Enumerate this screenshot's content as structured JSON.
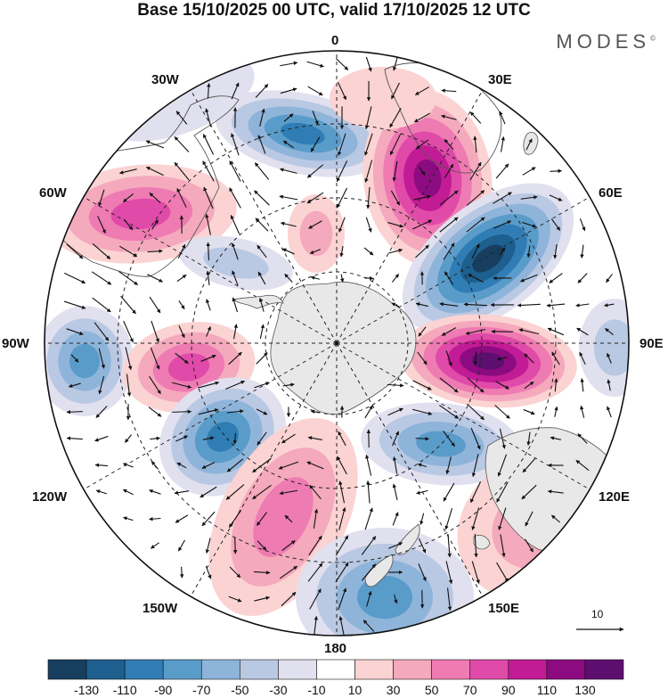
{
  "title": "Base 15/10/2025 00 UTC, valid 17/10/2025 12 UTC",
  "brand": "MODES",
  "brand_mark": "©",
  "longitude_labels": {
    "lon_0": "0",
    "lon_30e": "30E",
    "lon_60e": "60E",
    "lon_90e": "90E",
    "lon_120e": "120E",
    "lon_150e": "150E",
    "lon_180": "180",
    "lon_150w": "150W",
    "lon_120w": "120W",
    "lon_90w": "90W",
    "lon_60w": "60W",
    "lon_30w": "30W"
  },
  "reference_vector": {
    "label": "10",
    "value": 10
  },
  "colorbar": {
    "labels": [
      "-130",
      "-110",
      "-90",
      "-70",
      "-50",
      "-30",
      "-10",
      "10",
      "30",
      "50",
      "70",
      "90",
      "110",
      "130"
    ],
    "colors": [
      "#173e5e",
      "#1d5f8e",
      "#2f7db4",
      "#5a9cc9",
      "#8fb4da",
      "#b9c8e3",
      "#e1e0ef",
      "#ffffff",
      "#fbd3d3",
      "#f5a9bd",
      "#ee7bb2",
      "#e04aa8",
      "#c11b95",
      "#8c0b80",
      "#5d0f6f"
    ]
  },
  "colors": {
    "continent": "#e8e8e8",
    "land_outline": "#555555",
    "grid": "#222222",
    "vector": "#111111"
  }
}
